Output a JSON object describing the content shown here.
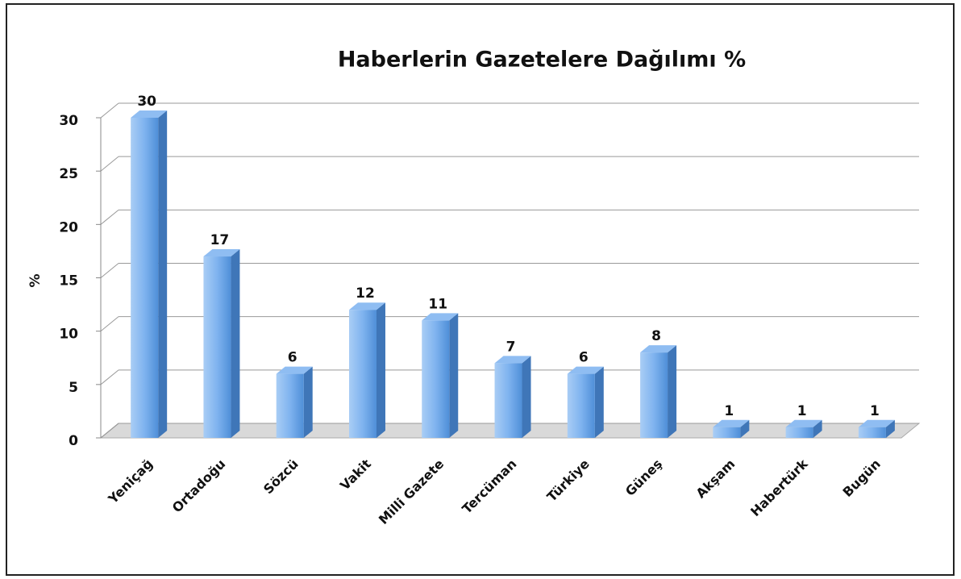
{
  "chart_data": {
    "type": "bar",
    "title": "Haberlerin Gazetelere Dağılımı %",
    "y_label": "%",
    "categories": [
      "Yeniçağ",
      "Ortadoğu",
      "Sözcü",
      "Vakit",
      "Milli Gazete",
      "Tercüman",
      "Türkiye",
      "Güneş",
      "Akşam",
      "Habertürk",
      "Bugün"
    ],
    "values": [
      30,
      17,
      6,
      12,
      11,
      7,
      6,
      8,
      1,
      1,
      1
    ],
    "color": "#6aa6e8",
    "ylim": [
      0,
      30
    ],
    "yticks": [
      0,
      5,
      10,
      15,
      20,
      25,
      30
    ],
    "grid": true
  }
}
